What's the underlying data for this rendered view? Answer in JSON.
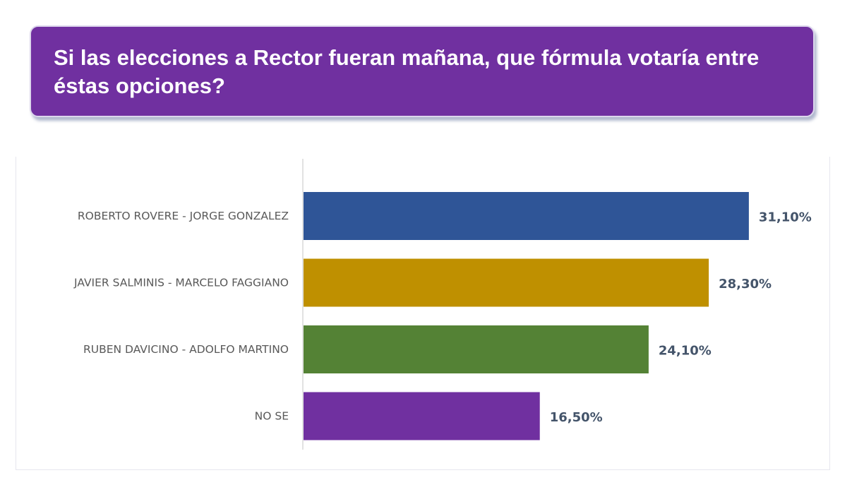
{
  "question": {
    "title": "Si las elecciones a Rector fueran mañana, que fórmula votaría entre éstas opciones?"
  },
  "chart_data": {
    "type": "bar",
    "orientation": "horizontal",
    "title": "",
    "xlabel": "",
    "ylabel": "",
    "xlim": [
      0,
      35
    ],
    "grid": false,
    "legend": "none",
    "categories": [
      "ROBERTO ROVERE - JORGE GONZALEZ",
      "JAVIER SALMINIS - MARCELO FAGGIANO",
      "RUBEN DAVICINO - ADOLFO MARTINO",
      "NO SE"
    ],
    "values": [
      31.1,
      28.3,
      24.1,
      16.5
    ],
    "value_labels": [
      "31,10%",
      "28,30%",
      "24,10%",
      "16,50%"
    ],
    "colors": [
      "#2f5597",
      "#bf9000",
      "#548235",
      "#7030a0"
    ],
    "label_color": "#595959",
    "value_label_color": "#44546a"
  }
}
